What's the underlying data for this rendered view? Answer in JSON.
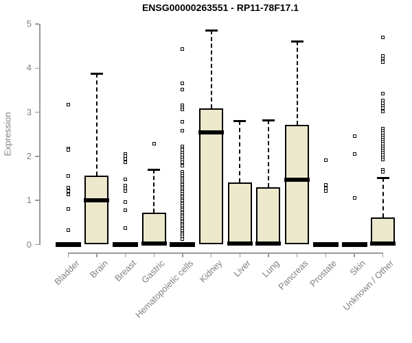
{
  "chart_data": {
    "type": "boxplot",
    "title": "ENSG00000263551 - RP11-78F17.1",
    "ylabel": "Expression",
    "xlabel": "",
    "ylim": [
      0,
      5
    ],
    "yticks": [
      0,
      1,
      2,
      3,
      4,
      5
    ],
    "grid": false,
    "legend": "none",
    "categories": [
      "Bladder",
      "Brain",
      "Breast",
      "Gastric",
      "Hematopoietic cells",
      "Kidney",
      "Liver",
      "Lung",
      "Pancreas",
      "Prostate",
      "Skin",
      "Unknown / Other"
    ],
    "series": [
      {
        "name": "Bladder",
        "q1": 0,
        "median": 0,
        "q3": 0,
        "whisker_low": 0,
        "whisker_high": 0,
        "outliers": [
          3.17,
          2.18,
          2.14,
          1.56,
          1.29,
          1.21,
          1.14,
          0.81,
          0.33
        ]
      },
      {
        "name": "Brain",
        "q1": 0,
        "median": 1.0,
        "q3": 1.57,
        "whisker_low": 0,
        "whisker_high": 3.88,
        "outliers": []
      },
      {
        "name": "Breast",
        "q1": 0,
        "median": 0,
        "q3": 0,
        "whisker_low": 0,
        "whisker_high": 0,
        "outliers": [
          2.06,
          2.0,
          1.94,
          1.87,
          1.48,
          1.33,
          1.27,
          1.22,
          0.97,
          0.77,
          0.38
        ]
      },
      {
        "name": "Gastric",
        "q1": 0,
        "median": 0.02,
        "q3": 0.73,
        "whisker_low": 0,
        "whisker_high": 1.7,
        "outliers": [
          2.29
        ]
      },
      {
        "name": "Hematopoietic cells",
        "q1": 0,
        "median": 0,
        "q3": 0,
        "whisker_low": 0,
        "whisker_high": 0,
        "outliers": [
          4.43,
          3.65,
          3.52,
          3.16,
          3.11,
          3.06,
          2.79,
          2.58,
          2.23,
          2.18,
          2.14,
          2.08,
          2.03,
          1.98,
          1.93,
          1.87,
          1.79,
          1.65,
          1.6,
          1.55,
          1.51,
          1.47,
          1.43,
          1.39,
          1.35,
          1.31,
          1.27,
          1.23,
          1.19,
          1.15,
          1.11,
          1.07,
          1.03,
          0.99,
          0.95,
          0.91,
          0.87,
          0.83,
          0.79,
          0.75,
          0.71,
          0.67,
          0.63,
          0.59,
          0.55,
          0.51,
          0.47,
          0.43,
          0.39,
          0.35,
          0.31,
          0.27,
          0.23,
          0.19,
          0.12
        ]
      },
      {
        "name": "Kidney",
        "q1": 0,
        "median": 2.55,
        "q3": 3.08,
        "whisker_low": 0,
        "whisker_high": 4.86,
        "outliers": []
      },
      {
        "name": "Liver",
        "q1": 0,
        "median": 0.02,
        "q3": 1.4,
        "whisker_low": 0,
        "whisker_high": 2.8,
        "outliers": []
      },
      {
        "name": "Lung",
        "q1": 0,
        "median": 0.02,
        "q3": 1.3,
        "whisker_low": 0,
        "whisker_high": 2.82,
        "outliers": []
      },
      {
        "name": "Pancreas",
        "q1": 0,
        "median": 1.47,
        "q3": 2.72,
        "whisker_low": 0,
        "whisker_high": 4.61,
        "outliers": []
      },
      {
        "name": "Prostate",
        "q1": 0,
        "median": 0,
        "q3": 0,
        "whisker_low": 0,
        "whisker_high": 0,
        "outliers": [
          1.91,
          1.35,
          1.28,
          1.22
        ]
      },
      {
        "name": "Skin",
        "q1": 0,
        "median": 0,
        "q3": 0,
        "whisker_low": 0,
        "whisker_high": 0,
        "outliers": [
          2.46,
          2.06,
          1.05
        ]
      },
      {
        "name": "Unknown / Other",
        "q1": 0,
        "median": 0.02,
        "q3": 0.62,
        "whisker_low": 0,
        "whisker_high": 1.51,
        "outliers": [
          4.7,
          4.28,
          4.22,
          4.17,
          4.13,
          3.42,
          3.26,
          3.2,
          3.14,
          3.1,
          3.01,
          2.63,
          2.58,
          2.53,
          2.48,
          2.43,
          2.38,
          2.33,
          2.28,
          2.23,
          2.18,
          2.13,
          2.08,
          2.03,
          1.98,
          1.93,
          1.7,
          1.65
        ]
      }
    ],
    "colors": {
      "box_fill": "#ece8cc",
      "box_border": "#000000",
      "median": "#000000",
      "axis": "#999999",
      "tick_label": "#808080",
      "title": "#000000",
      "background": "#ffffff"
    }
  }
}
